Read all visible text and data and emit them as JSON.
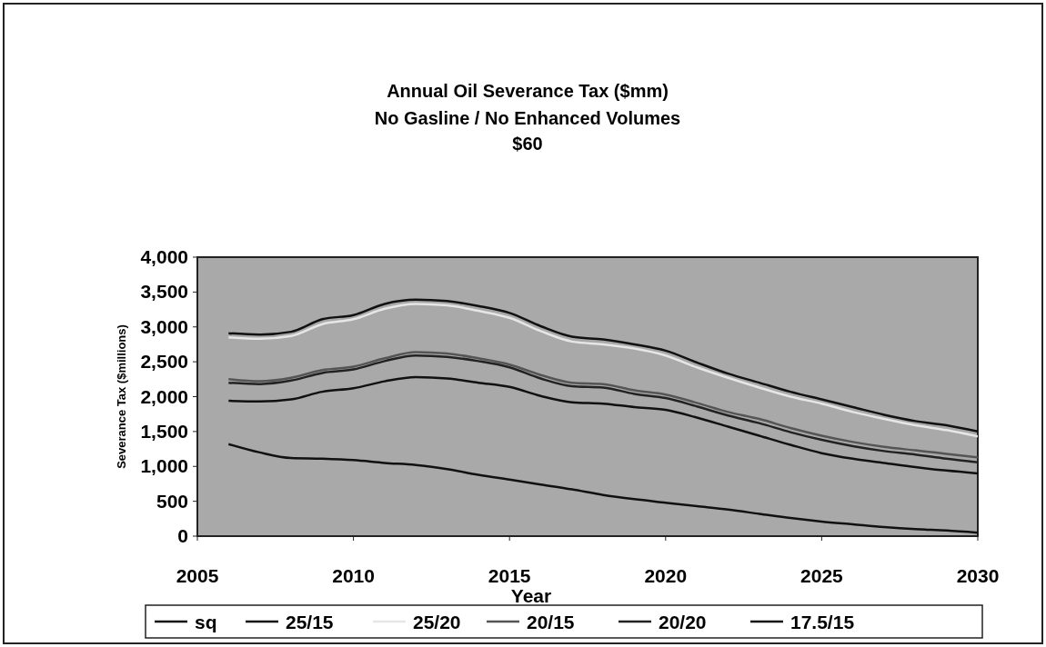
{
  "chart_data": {
    "type": "line",
    "title": "Annual Oil Severance Tax ($mm)",
    "subtitle": "No Gasline / No Enhanced Volumes\n$60",
    "xlabel": "Year",
    "ylabel": "Severance Tax ($millions)",
    "x": [
      2006,
      2007,
      2008,
      2009,
      2010,
      2011,
      2012,
      2013,
      2014,
      2015,
      2016,
      2017,
      2018,
      2019,
      2020,
      2021,
      2022,
      2023,
      2024,
      2025,
      2026,
      2027,
      2028,
      2029,
      2030
    ],
    "series": [
      {
        "name": "sq",
        "color": "#111111",
        "values": [
          1320,
          1200,
          1120,
          1110,
          1090,
          1050,
          1020,
          960,
          880,
          810,
          740,
          670,
          590,
          530,
          480,
          430,
          380,
          320,
          260,
          210,
          170,
          130,
          100,
          80,
          50
        ]
      },
      {
        "name": "25/15",
        "color": "#111111",
        "values": [
          2910,
          2890,
          2930,
          3110,
          3170,
          3330,
          3390,
          3370,
          3300,
          3200,
          3010,
          2860,
          2820,
          2750,
          2660,
          2490,
          2330,
          2200,
          2070,
          1960,
          1850,
          1740,
          1650,
          1590,
          1500
        ]
      },
      {
        "name": "25/20",
        "color": "#e6e6e6",
        "values": [
          2850,
          2830,
          2870,
          3040,
          3110,
          3260,
          3330,
          3310,
          3230,
          3130,
          2940,
          2790,
          2750,
          2690,
          2590,
          2420,
          2270,
          2130,
          2000,
          1900,
          1780,
          1680,
          1590,
          1520,
          1430
        ]
      },
      {
        "name": "20/15",
        "color": "#555555",
        "values": [
          2250,
          2220,
          2270,
          2380,
          2430,
          2550,
          2640,
          2620,
          2550,
          2460,
          2310,
          2200,
          2180,
          2090,
          2030,
          1910,
          1780,
          1680,
          1550,
          1440,
          1350,
          1280,
          1230,
          1180,
          1130
        ]
      },
      {
        "name": "20/20",
        "color": "#222222",
        "values": [
          2200,
          2180,
          2230,
          2340,
          2390,
          2510,
          2590,
          2570,
          2510,
          2420,
          2260,
          2150,
          2130,
          2040,
          1980,
          1860,
          1730,
          1620,
          1490,
          1380,
          1290,
          1220,
          1170,
          1110,
          1060
        ]
      },
      {
        "name": "17.5/15",
        "color": "#111111",
        "values": [
          1940,
          1930,
          1960,
          2070,
          2120,
          2220,
          2280,
          2260,
          2200,
          2140,
          2010,
          1920,
          1900,
          1850,
          1810,
          1700,
          1570,
          1440,
          1310,
          1190,
          1110,
          1050,
          990,
          940,
          900
        ]
      }
    ],
    "xlim": [
      2005,
      2030
    ],
    "xticks": [
      2005,
      2010,
      2015,
      2020,
      2025,
      2030
    ],
    "ylim": [
      0,
      4000
    ],
    "yticks": [
      0,
      {
        "value": 500,
        "label": "500"
      },
      {
        "value": 1000,
        "label": "1,000"
      },
      {
        "value": 1500,
        "label": "1,500"
      },
      {
        "value": 2000,
        "label": "2,000"
      },
      {
        "value": 2500,
        "label": "2,500"
      },
      {
        "value": 3000,
        "label": "3,000"
      },
      {
        "value": 3500,
        "label": "3,500"
      },
      {
        "value": 4000,
        "label": "4,000"
      }
    ],
    "grid": false,
    "legend": "bottom",
    "marker": "none",
    "line_style": "solid"
  }
}
